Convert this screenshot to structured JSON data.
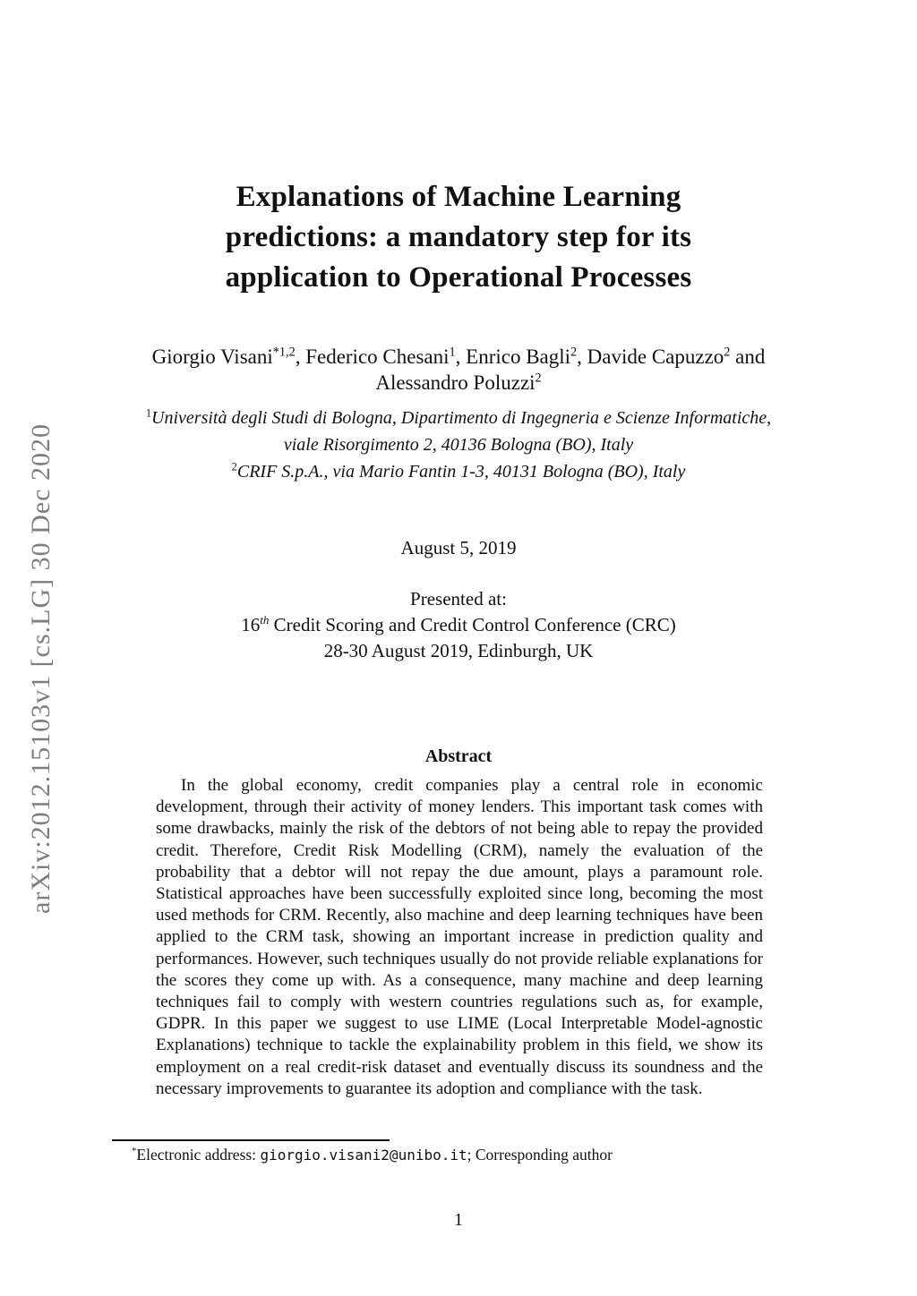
{
  "arxiv_stamp": "arXiv:2012.15103v1  [cs.LG]  30 Dec 2020",
  "title": {
    "lines": [
      "Explanations of Machine Learning",
      "predictions: a mandatory step for its",
      "application to Operational Processes"
    ]
  },
  "authors": {
    "line1": [
      {
        "name": "Giorgio Visani",
        "sup": "*1,2"
      },
      {
        "name": ", Federico Chesani",
        "sup": "1"
      },
      {
        "name": ", Enrico Bagli",
        "sup": "2"
      },
      {
        "name": ", Davide Capuzzo",
        "sup": "2"
      },
      {
        "name": " and",
        "sup": ""
      }
    ],
    "line2": [
      {
        "name": "Alessandro Poluzzi",
        "sup": "2"
      }
    ]
  },
  "affiliations": [
    {
      "sup": "1",
      "line1": "Università degli Studi di Bologna, Dipartimento di Ingegneria e Scienze Informatiche,",
      "line2": "viale Risorgimento 2, 40136 Bologna (BO), Italy"
    },
    {
      "sup": "2",
      "line1": "CRIF S.p.A., via Mario Fantin 1-3, 40131 Bologna (BO), Italy",
      "line2": ""
    }
  ],
  "meta": {
    "date": "August 5, 2019",
    "presented_label": "Presented at:",
    "conference_number": "16",
    "conference_ordinal": "th",
    "conference_name": " Credit Scoring and Credit Control Conference (CRC)",
    "conference_dates": "28-30 August 2019, Edinburgh, UK"
  },
  "abstract": {
    "heading": "Abstract",
    "text": "In the global economy, credit companies play a central role in economic development, through their activity of money lenders. This important task comes with some drawbacks, mainly the risk of the debtors of not being able to repay the provided credit. Therefore, Credit Risk Modelling (CRM), namely the evaluation of the probability that a debtor will not repay the due amount, plays a paramount role. Statistical approaches have been successfully exploited since long, becoming the most used methods for CRM. Recently, also machine and deep learning techniques have been applied to the CRM task, showing an important increase in prediction quality and performances. However, such techniques usually do not provide reliable explanations for the scores they come up with. As a consequence, many machine and deep learning techniques fail to comply with western countries regulations such as, for example, GDPR. In this paper we suggest to use LIME (Local Interpretable Model-agnostic Explanations) technique to tackle the explainability problem in this field, we show its employment on a real credit-risk dataset and eventually discuss its soundness and the necessary improvements to guarantee its adoption and compliance with the task."
  },
  "footnote": {
    "marker": "*",
    "text_before_email": "Electronic address: ",
    "email": "giorgio.visani2@unibo.it",
    "text_after_email": "; Corresponding author"
  },
  "page_number": "1",
  "colors": {
    "text": "#111111",
    "stamp_gray": "#7e7e7e"
  }
}
